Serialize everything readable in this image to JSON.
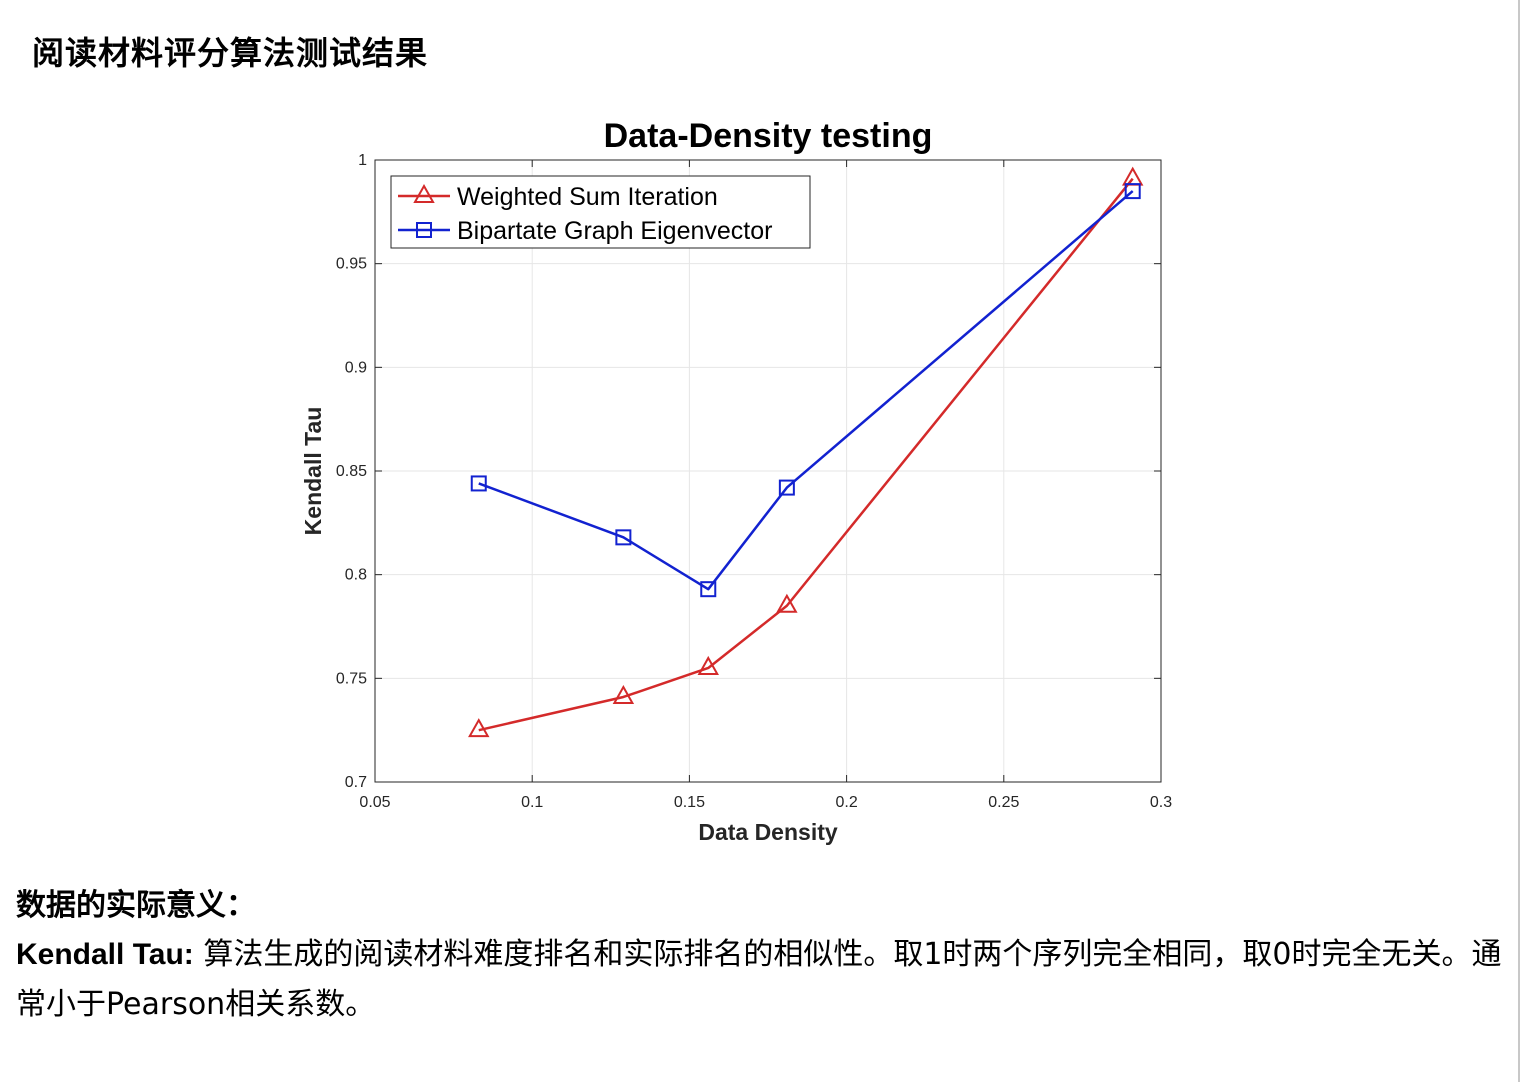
{
  "page": {
    "title": "阅读材料评分算法测试结果"
  },
  "chart_data": {
    "type": "line",
    "title": "Data-Density testing",
    "xlabel": "Data Density",
    "ylabel": "Kendall Tau",
    "xlim": [
      0.05,
      0.3
    ],
    "ylim": [
      0.7,
      1.0
    ],
    "xticks": [
      "0.05",
      "0.1",
      "0.15",
      "0.2",
      "0.25",
      "0.3"
    ],
    "yticks": [
      "0.7",
      "0.75",
      "0.8",
      "0.85",
      "0.9",
      "0.95",
      "1"
    ],
    "grid": true,
    "legend_position": "top-left",
    "series": [
      {
        "name": "Weighted Sum Iteration",
        "color": "#d42a2a",
        "marker": "triangle",
        "x": [
          0.083,
          0.129,
          0.156,
          0.181,
          0.291
        ],
        "y": [
          0.725,
          0.741,
          0.755,
          0.785,
          0.991
        ]
      },
      {
        "name": "Bipartate Graph Eigenvector",
        "color": "#1222d0",
        "marker": "square",
        "x": [
          0.083,
          0.129,
          0.156,
          0.181,
          0.291
        ],
        "y": [
          0.844,
          0.818,
          0.793,
          0.842,
          0.985
        ]
      }
    ]
  },
  "explanation": {
    "heading": "数据的实际意义：",
    "term": "Kendall Tau:",
    "text": " 算法生成的阅读材料难度排名和实际排名的相似性。取1时两个序列完全相同，取0时完全无关。通常小于Pearson相关系数。"
  }
}
